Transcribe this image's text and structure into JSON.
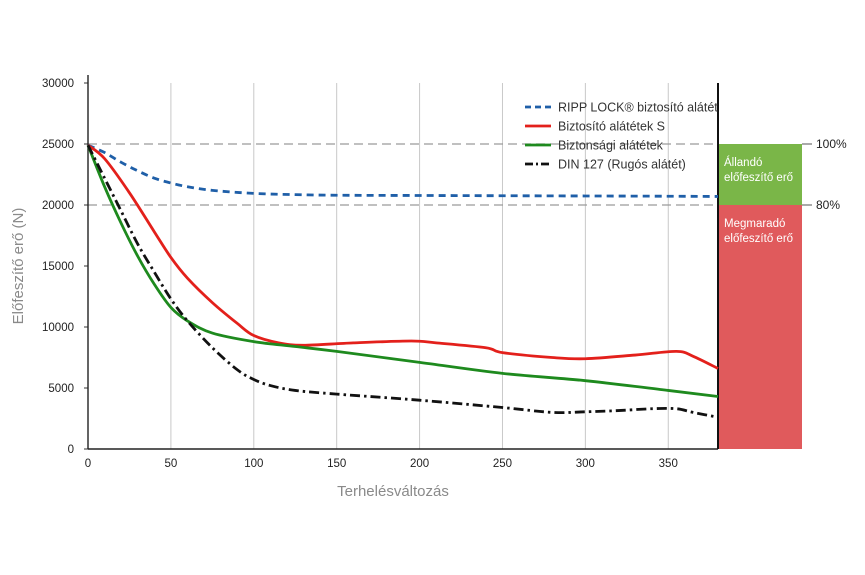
{
  "chart_data": {
    "type": "line",
    "xlabel": "Terhelésváltozás",
    "ylabel": "Előfeszítő erő  (N)",
    "xlim": [
      0,
      380
    ],
    "ylim": [
      0,
      30000
    ],
    "x_ticks": [
      "0",
      "50",
      "100",
      "150",
      "200",
      "250",
      "300",
      "350"
    ],
    "y_ticks": [
      "0",
      "5000",
      "10000",
      "15000",
      "20000",
      "25000",
      "30000"
    ],
    "grid": true,
    "legend_position": "top-right",
    "series": [
      {
        "name": "RIPP LOCK® biztosító alátét",
        "color": "#1f5fa8",
        "style": "dashed",
        "x": [
          0,
          10,
          20,
          30,
          40,
          50,
          60,
          75,
          100,
          125,
          150,
          200,
          250,
          300,
          350,
          380
        ],
        "values": [
          24900,
          24300,
          23500,
          22800,
          22200,
          21800,
          21500,
          21200,
          20950,
          20850,
          20800,
          20780,
          20760,
          20740,
          20720,
          20700
        ]
      },
      {
        "name": "Biztosító alátétek S",
        "color": "#e3201b",
        "style": "solid",
        "x": [
          0,
          10,
          25,
          40,
          50,
          60,
          75,
          90,
          100,
          115,
          130,
          160,
          195,
          210,
          240,
          250,
          280,
          300,
          330,
          355,
          365,
          380
        ],
        "values": [
          24900,
          23800,
          21000,
          17800,
          15700,
          14000,
          12000,
          10300,
          9300,
          8700,
          8500,
          8700,
          8850,
          8700,
          8300,
          7900,
          7500,
          7400,
          7700,
          8000,
          7600,
          6600
        ]
      },
      {
        "name": "Biztonsági alátétek",
        "color": "#1e8a1e",
        "style": "solid",
        "x": [
          0,
          10,
          20,
          30,
          40,
          50,
          60,
          75,
          100,
          125,
          150,
          200,
          250,
          300,
          350,
          380
        ],
        "values": [
          24900,
          21500,
          18500,
          15800,
          13500,
          11600,
          10500,
          9500,
          8800,
          8400,
          8000,
          7100,
          6200,
          5600,
          4800,
          4300
        ]
      },
      {
        "name": "DIN 127 (Rugós alátét)",
        "color": "#111111",
        "style": "dashdot",
        "x": [
          0,
          10,
          20,
          30,
          40,
          50,
          60,
          75,
          90,
          100,
          110,
          125,
          150,
          200,
          250,
          280,
          300,
          320,
          340,
          355,
          365,
          380
        ],
        "values": [
          24900,
          22200,
          19500,
          16800,
          14500,
          12300,
          10500,
          8300,
          6500,
          5700,
          5200,
          4800,
          4500,
          4000,
          3400,
          3000,
          3050,
          3150,
          3300,
          3300,
          3000,
          2600
        ]
      }
    ],
    "reference_lines": [
      {
        "label": "100%",
        "value": 25000
      },
      {
        "label": "80%",
        "value": 20000
      }
    ],
    "side_bar": {
      "segments": [
        {
          "label_lines": [
            "Állandó",
            "előfeszítő erő"
          ],
          "from": 20000,
          "to": 25000,
          "color": "#7ab648"
        },
        {
          "label_lines": [
            "Megmaradó",
            "előfeszítő erő"
          ],
          "from": 0,
          "to": 20000,
          "color": "#e05a5c"
        }
      ]
    }
  }
}
